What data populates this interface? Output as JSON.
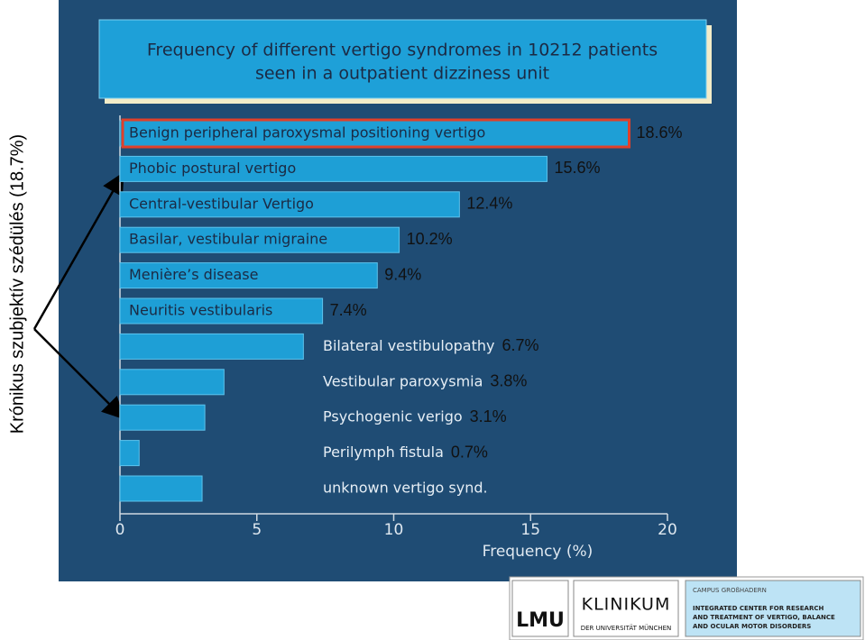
{
  "chart_data": {
    "type": "barh",
    "title_lines": [
      "Frequency of different vertigo syndromes in 10212 patients",
      "seen in a outpatient dizziness unit"
    ],
    "categories": [
      "Benign peripheral paroxysmal positioning vertigo",
      "Phobic postural vertigo",
      "Central-vestibular Vertigo",
      "Basilar, vestibular migraine",
      "Menière’s disease",
      "Neuritis vestibularis",
      "Bilateral vestibulopathy",
      "Vestibular paroxysmia",
      "Psychogenic verigo",
      "Perilymph fistula",
      "unknown vertigo synd."
    ],
    "values": [
      18.6,
      15.6,
      12.4,
      10.2,
      9.4,
      7.4,
      6.7,
      3.8,
      3.1,
      0.7,
      3.0
    ],
    "value_labels": [
      "18.6%",
      "15.6%",
      "12.4%",
      "10.2%",
      "9.4%",
      "7.4%",
      "6.7%",
      "3.8%",
      "3.1%",
      "0.7%",
      null
    ],
    "color": "#1e9fd6",
    "highlight_index": 0,
    "highlight_color": "#e0402a",
    "xlabel": "Frequency (%)",
    "xlim": [
      0,
      20
    ],
    "xticks": [
      0,
      5,
      10,
      15,
      20
    ],
    "side_note": "Krónikus szubjektív szédülés (18.7%)"
  },
  "logos": {
    "lmu": "LMU",
    "klinikum": "KLINIKUM",
    "klinikum_sub": "DER UNIVERSITÄT MÜNCHEN",
    "campus": "CAMPUS GROßHADERN",
    "center_lines": [
      "INTEGRATED CENTER FOR RESEARCH",
      "AND TREATMENT OF VERTIGO, BALANCE",
      "AND OCULAR MOTOR DISORDERS"
    ]
  }
}
